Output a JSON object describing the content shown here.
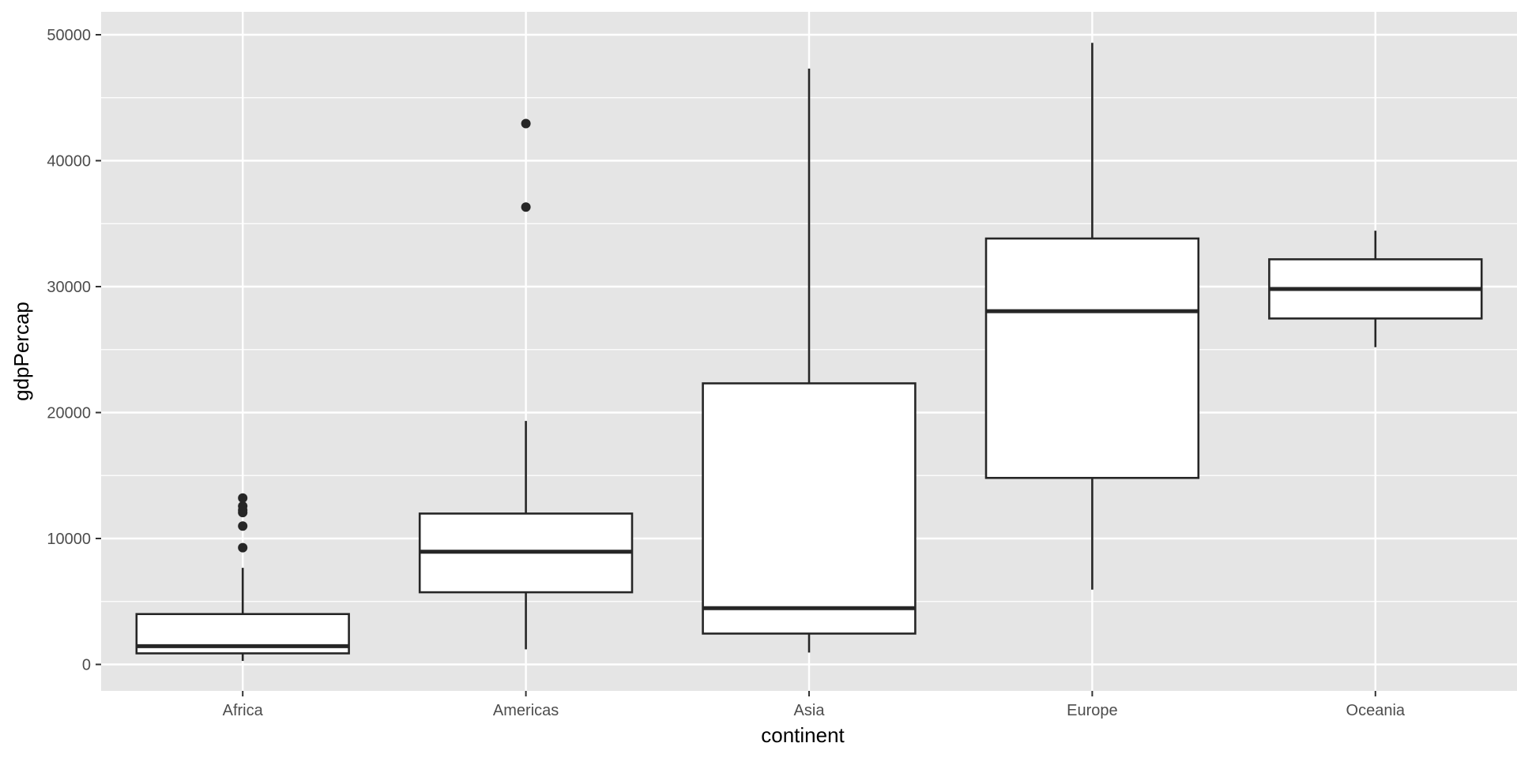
{
  "chart_data": {
    "type": "boxplot",
    "xlabel": "continent",
    "ylabel": "gdpPercap",
    "ylim": [
      -2100,
      52000
    ],
    "y_ticks": [
      0,
      10000,
      20000,
      30000,
      40000,
      50000
    ],
    "y_tick_labels": [
      "0",
      "10000",
      "20000",
      "30000",
      "40000",
      "50000"
    ],
    "grid": true,
    "categories": [
      "Africa",
      "Americas",
      "Asia",
      "Europe",
      "Oceania"
    ],
    "boxes": [
      {
        "category": "Africa",
        "whisker_low": 277,
        "q1": 880,
        "median": 1450,
        "q3": 4000,
        "whisker_high": 7670,
        "outliers": [
          9270,
          10990,
          12060,
          12250,
          12570,
          13210
        ]
      },
      {
        "category": "Americas",
        "whisker_low": 1200,
        "q1": 5730,
        "median": 8950,
        "q3": 11980,
        "whisker_high": 19330,
        "outliers": [
          36320,
          42950
        ]
      },
      {
        "category": "Asia",
        "whisker_low": 945,
        "q1": 2450,
        "median": 4470,
        "q3": 22320,
        "whisker_high": 47310,
        "outliers": []
      },
      {
        "category": "Europe",
        "whisker_low": 5940,
        "q1": 14810,
        "median": 28050,
        "q3": 33820,
        "whisker_high": 49360,
        "outliers": []
      },
      {
        "category": "Oceania",
        "whisker_low": 25190,
        "q1": 27470,
        "median": 29810,
        "q3": 32170,
        "whisker_high": 34440,
        "outliers": []
      }
    ],
    "colors": {
      "panel_bg": "#e5e5e5",
      "grid_major": "#ffffff",
      "box_fill": "#ffffff",
      "box_stroke": "#262626",
      "tick_text": "#4d4d4d",
      "title_text": "#000000"
    }
  }
}
